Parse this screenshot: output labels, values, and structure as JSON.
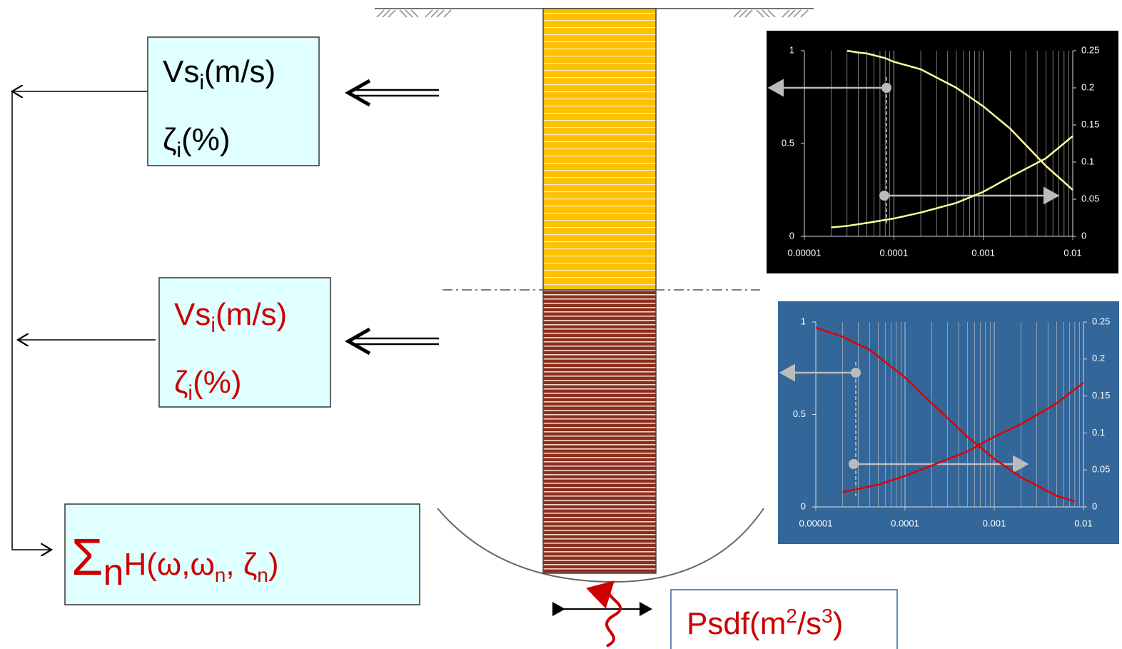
{
  "boxes": [
    {
      "vs": {
        "base": "Vs",
        "sub": "i",
        "rest": "(m/s)"
      },
      "damping": {
        "base": "ζ",
        "sub": "i",
        "rest": "(%)"
      }
    },
    {
      "vs": {
        "base": "Vs",
        "sub": "i",
        "rest": "(m/s)"
      },
      "damping": {
        "base": "ζ",
        "sub": "i",
        "rest": "(%)"
      }
    }
  ],
  "transfer": {
    "sigma": "Σ",
    "sigma_sub": "n",
    "func": "H(ω,ω",
    "sub1": "n",
    "mid": ", ζ",
    "sub2": "n",
    "end": ")"
  },
  "input": {
    "base": "Psdf(m",
    "sup1": "2",
    "mid": "/s",
    "sup2": "3",
    "end": ")"
  },
  "charts": [
    {
      "type": "line",
      "x_scale": "log",
      "background": "#000000",
      "xlim": [
        1e-05,
        0.01
      ],
      "xticks": [
        1e-05,
        0.0001,
        0.001,
        0.01
      ],
      "ylim": [
        0,
        1
      ],
      "yticks": [
        0,
        0.5,
        1
      ],
      "y2lim": [
        0,
        0.25
      ],
      "y2ticks": [
        0,
        0.05,
        0.1,
        0.15,
        0.2,
        0.25
      ],
      "series": [
        {
          "color": "#ffff99",
          "x": [
            3e-05,
            4e-05,
            5e-05,
            8e-05,
            0.0001,
            0.0002,
            0.0005,
            0.001,
            0.002,
            0.005,
            0.01
          ],
          "values": [
            1,
            0.99,
            0.985,
            0.96,
            0.94,
            0.9,
            0.8,
            0.7,
            0.58,
            0.38,
            0.25
          ]
        },
        {
          "color": "#ffff99",
          "axis": "y2",
          "x": [
            2e-05,
            3e-05,
            5e-05,
            0.0001,
            0.0002,
            0.0005,
            0.001,
            0.002,
            0.005,
            0.01
          ],
          "values": [
            0.012,
            0.014,
            0.018,
            0.024,
            0.032,
            0.045,
            0.06,
            0.08,
            0.105,
            0.135
          ]
        }
      ]
    },
    {
      "type": "line",
      "x_scale": "log",
      "background": "#336699",
      "xlim": [
        1e-05,
        0.01
      ],
      "xticks": [
        1e-05,
        0.0001,
        0.001,
        0.01
      ],
      "ylim": [
        0,
        1
      ],
      "yticks": [
        0,
        0.5,
        1
      ],
      "y2lim": [
        0,
        0.25
      ],
      "y2ticks": [
        0,
        0.05,
        0.1,
        0.15,
        0.2,
        0.25
      ],
      "series": [
        {
          "color": "#e00000",
          "x": [
            1e-05,
            2e-05,
            4e-05,
            0.0001,
            0.0002,
            0.0005,
            0.001,
            0.002,
            0.005,
            0.008
          ],
          "values": [
            0.97,
            0.92,
            0.85,
            0.7,
            0.56,
            0.38,
            0.26,
            0.16,
            0.06,
            0.03
          ]
        },
        {
          "color": "#e00000",
          "axis": "y2",
          "x": [
            2e-05,
            5e-05,
            0.0001,
            0.0002,
            0.0005,
            0.001,
            0.002,
            0.005,
            0.01
          ],
          "values": [
            0.02,
            0.03,
            0.042,
            0.056,
            0.075,
            0.095,
            0.112,
            0.14,
            0.168
          ]
        }
      ]
    }
  ]
}
